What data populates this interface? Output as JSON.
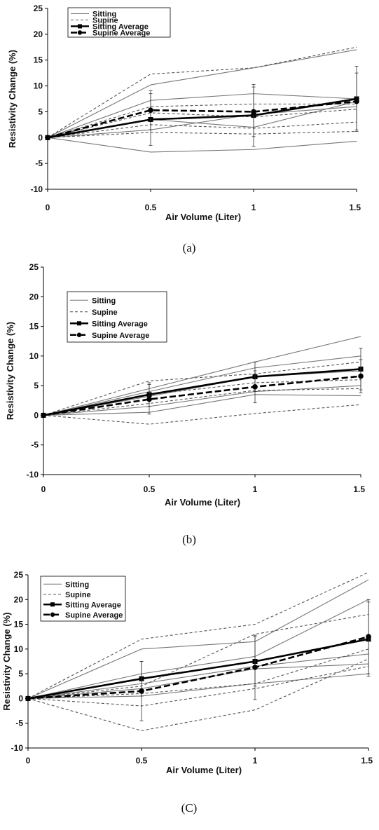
{
  "chart_data": [
    {
      "type": "line",
      "caption": "(a)",
      "xlabel": "Air Volume (Liter)",
      "ylabel": "Resistivity Change (%)",
      "x": [
        0,
        0.5,
        1,
        1.5
      ],
      "x_tick_labels": [
        "0",
        "0.5",
        "1",
        "1.5"
      ],
      "ylim": [
        -10,
        25
      ],
      "y_ticks": [
        -10,
        -5,
        0,
        5,
        10,
        15,
        20,
        25
      ],
      "grid": false,
      "legend": [
        "Sitting",
        "Supine",
        "Sitting Average",
        "Supine Average"
      ],
      "legend_position": "top-left",
      "series": [
        {
          "name": "Sitting",
          "values": [
            0,
            10.2,
            13.5,
            17.0
          ]
        },
        {
          "name": "Sitting",
          "values": [
            0,
            7.2,
            8.5,
            7.5
          ]
        },
        {
          "name": "Sitting",
          "values": [
            0,
            3.5,
            2.0,
            7.0
          ]
        },
        {
          "name": "Sitting",
          "values": [
            0,
            1.5,
            4.5,
            6.0
          ]
        },
        {
          "name": "Sitting",
          "values": [
            0,
            -2.8,
            -2.3,
            -0.7
          ]
        },
        {
          "name": "Supine",
          "values": [
            0,
            12.3,
            13.5,
            17.5
          ]
        },
        {
          "name": "Supine",
          "values": [
            0,
            6.0,
            6.5,
            6.5
          ]
        },
        {
          "name": "Supine",
          "values": [
            0,
            4.8,
            4.0,
            5.5
          ]
        },
        {
          "name": "Supine",
          "values": [
            0,
            2.5,
            1.8,
            3.0
          ]
        },
        {
          "name": "Supine",
          "values": [
            0,
            1.0,
            0.7,
            1.2
          ]
        },
        {
          "name": "Sitting Average",
          "values": [
            0,
            3.5,
            4.3,
            7.5
          ],
          "error": [
            0,
            5.0,
            6.0,
            6.3
          ]
        },
        {
          "name": "Supine Average",
          "values": [
            0,
            5.3,
            5.0,
            7.0
          ],
          "error": [
            0,
            3.8,
            4.8,
            5.5
          ]
        }
      ]
    },
    {
      "type": "line",
      "caption": "(b)",
      "xlabel": "Air Volume (Liter)",
      "ylabel": "Resistivity Change (%)",
      "x": [
        0,
        0.5,
        1,
        1.5
      ],
      "x_tick_labels": [
        "0",
        "0.5",
        "1",
        "1.5"
      ],
      "ylim": [
        -10,
        25
      ],
      "y_ticks": [
        -10,
        -5,
        0,
        5,
        10,
        15,
        20,
        25
      ],
      "grid": false,
      "legend": [
        "Sitting",
        "Supine",
        "Sitting Average",
        "Supine Average"
      ],
      "legend_position": "top-left",
      "series": [
        {
          "name": "Sitting",
          "values": [
            0,
            4.5,
            9.0,
            13.3
          ]
        },
        {
          "name": "Sitting",
          "values": [
            0,
            4.0,
            8.0,
            10.0
          ]
        },
        {
          "name": "Sitting",
          "values": [
            0,
            3.2,
            6.5,
            7.5
          ]
        },
        {
          "name": "Sitting",
          "values": [
            0,
            1.5,
            4.0,
            5.0
          ]
        },
        {
          "name": "Sitting",
          "values": [
            0,
            0.5,
            3.5,
            3.3
          ]
        },
        {
          "name": "Supine",
          "values": [
            0,
            5.8,
            7.0,
            9.0
          ]
        },
        {
          "name": "Supine",
          "values": [
            0,
            3.5,
            5.5,
            6.0
          ]
        },
        {
          "name": "Supine",
          "values": [
            0,
            2.0,
            4.2,
            4.5
          ]
        },
        {
          "name": "Supine",
          "values": [
            0,
            -1.5,
            0.3,
            1.8
          ]
        },
        {
          "name": "Sitting Average",
          "values": [
            0,
            3.5,
            6.5,
            7.8
          ],
          "error": [
            0,
            2.0,
            2.5,
            3.5
          ]
        },
        {
          "name": "Supine Average",
          "values": [
            0,
            2.7,
            4.8,
            6.6
          ],
          "error": [
            0,
            2.5,
            2.7,
            2.8
          ]
        }
      ]
    },
    {
      "type": "line",
      "caption": "(C)",
      "xlabel": "Air Volume (Liter)",
      "ylabel": "Resistivity Change (%)",
      "x": [
        0,
        0.5,
        1,
        1.5
      ],
      "x_tick_labels": [
        "0",
        "0.5",
        "1",
        "1.5"
      ],
      "ylim": [
        -10,
        25
      ],
      "y_ticks": [
        -10,
        -5,
        0,
        5,
        10,
        15,
        20,
        25
      ],
      "grid": false,
      "legend": [
        "Sitting",
        "Supine",
        "Sitting Average",
        "Supine Average"
      ],
      "legend_position": "top-left",
      "series": [
        {
          "name": "Sitting",
          "values": [
            0,
            10.0,
            11.5,
            24.0
          ]
        },
        {
          "name": "Sitting",
          "values": [
            0,
            5.0,
            8.5,
            20.0
          ]
        },
        {
          "name": "Sitting",
          "values": [
            0,
            3.0,
            6.5,
            9.0
          ]
        },
        {
          "name": "Sitting",
          "values": [
            0,
            2.0,
            6.0,
            7.0
          ]
        },
        {
          "name": "Sitting",
          "values": [
            0,
            0.5,
            3.0,
            5.0
          ]
        },
        {
          "name": "Supine",
          "values": [
            0,
            12.0,
            15.0,
            25.5
          ]
        },
        {
          "name": "Supine",
          "values": [
            0,
            2.5,
            13.0,
            17.0
          ]
        },
        {
          "name": "Supine",
          "values": [
            0,
            1.0,
            3.0,
            10.0
          ]
        },
        {
          "name": "Supine",
          "values": [
            0,
            -1.5,
            2.0,
            6.5
          ]
        },
        {
          "name": "Supine",
          "values": [
            0,
            -6.5,
            -2.3,
            8.0
          ]
        },
        {
          "name": "Sitting Average",
          "values": [
            0,
            4.0,
            7.5,
            12.0
          ],
          "error": [
            0,
            3.5,
            5.0,
            7.5
          ]
        },
        {
          "name": "Supine Average",
          "values": [
            0,
            1.5,
            6.3,
            12.5
          ],
          "error": [
            0,
            6.0,
            6.5,
            7.5
          ]
        }
      ]
    }
  ]
}
